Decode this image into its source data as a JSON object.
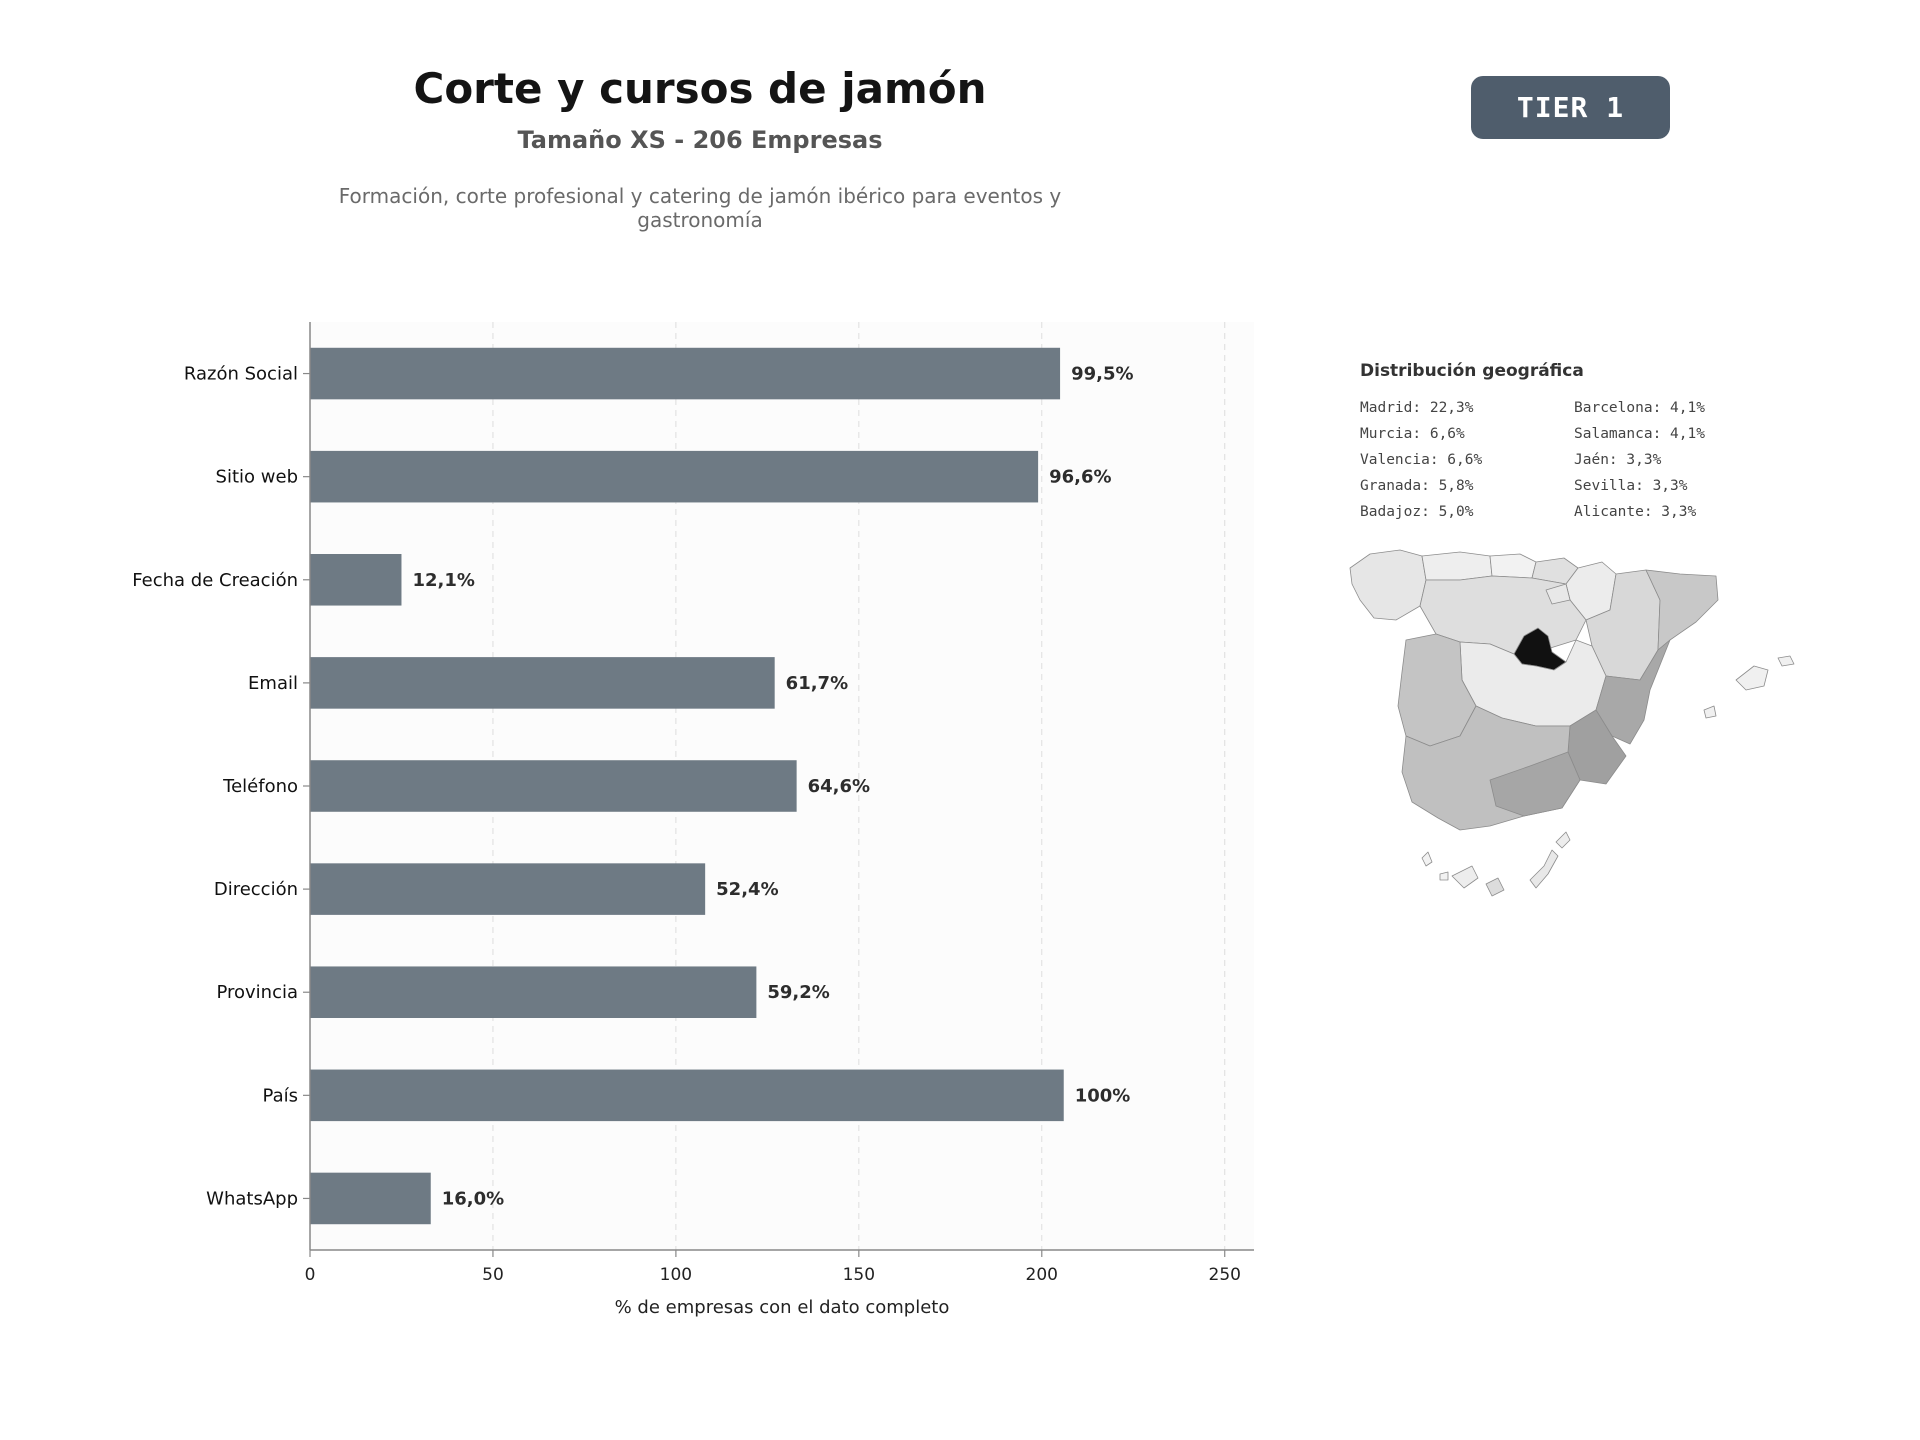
{
  "header": {
    "title": "Corte y cursos de jamón",
    "subtitle": "Tamaño XS - 206 Empresas",
    "description": "Formación, corte profesional y catering de jamón ibérico para eventos y gastronomía",
    "badge": "TIER 1"
  },
  "chart_data": {
    "type": "bar",
    "orientation": "horizontal",
    "categories": [
      "Razón Social",
      "Sitio web",
      "Fecha de Creación",
      "Email",
      "Teléfono",
      "Dirección",
      "Provincia",
      "País",
      "WhatsApp"
    ],
    "values": [
      205,
      199,
      25,
      127,
      133,
      108,
      122,
      206,
      33
    ],
    "value_labels": [
      "99,5%",
      "96,6%",
      "12,1%",
      "61,7%",
      "64,6%",
      "52,4%",
      "59,2%",
      "100%",
      "16,0%"
    ],
    "xlabel": "% de empresas con el dato completo",
    "xlim": [
      0,
      258
    ],
    "xticks": [
      0,
      50,
      100,
      150,
      200,
      250
    ],
    "grid": "x-dashed",
    "colors": {
      "bar": "#6e7a84",
      "label": "#2d2d2d",
      "axis": "#888888"
    }
  },
  "geo": {
    "title": "Distribución geográfica",
    "items": [
      "Madrid: 22,3%",
      "Barcelona: 4,1%",
      "Murcia: 6,6%",
      "Salamanca: 4,1%",
      "Valencia: 6,6%",
      "Jaén: 3,3%",
      "Granada: 5,8%",
      "Sevilla: 3,3%",
      "Badajoz: 5,0%",
      "Alicante: 3,3%"
    ]
  }
}
